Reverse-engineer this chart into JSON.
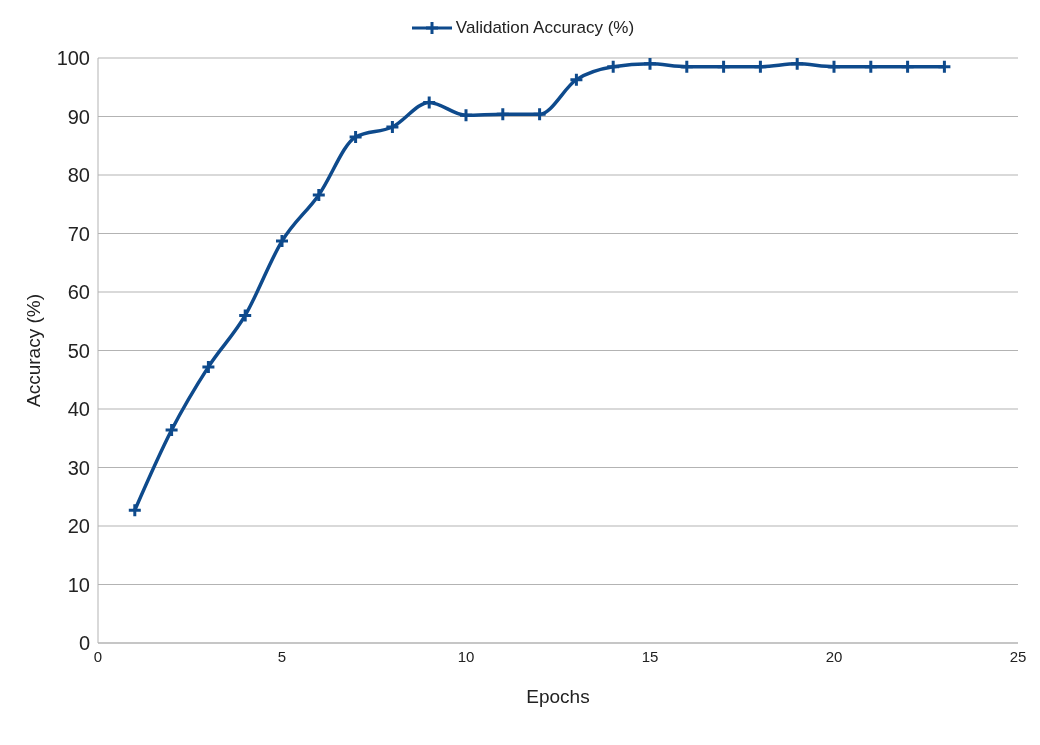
{
  "chart_data": {
    "type": "line",
    "xlabel": "Epochs",
    "ylabel": "Accuracy (%)",
    "x": [
      1,
      2,
      3,
      4,
      5,
      6,
      7,
      8,
      9,
      10,
      11,
      12,
      13,
      14,
      15,
      16,
      17,
      18,
      19,
      20,
      21,
      22,
      23
    ],
    "series": [
      {
        "name": "Validation Accuracy (%)",
        "color": "#0e4a8c",
        "values": [
          22.7,
          36.4,
          47.2,
          56.0,
          68.7,
          76.6,
          86.5,
          88.2,
          92.4,
          90.2,
          90.4,
          90.4,
          96.3,
          98.5,
          99.0,
          98.5,
          98.5,
          98.5,
          99.0,
          98.5,
          98.5,
          98.5,
          98.5
        ]
      }
    ],
    "xlim": [
      0,
      25
    ],
    "xticks": [
      0,
      5,
      10,
      15,
      20,
      25
    ],
    "ylim": [
      0,
      100
    ],
    "yticks": [
      0,
      10,
      20,
      30,
      40,
      50,
      60,
      70,
      80,
      90,
      100
    ],
    "grid": "y",
    "legend": "top",
    "marker": "cross",
    "line_style": "solid"
  }
}
